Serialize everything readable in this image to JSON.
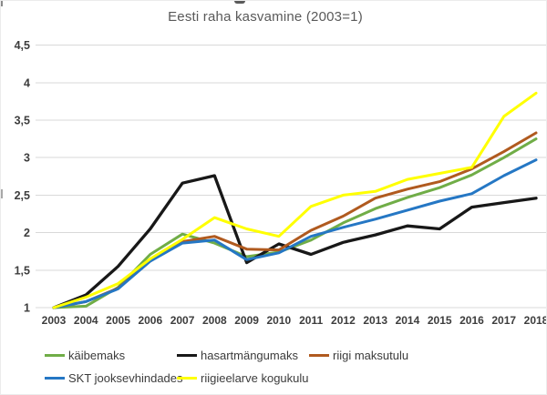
{
  "title": "Eesti raha kasvamine (2003=1)",
  "chart_data": {
    "type": "line",
    "title": "Eesti raha kasvamine (2003=1)",
    "xlabel": "",
    "ylabel": "",
    "x": [
      2003,
      2004,
      2005,
      2006,
      2007,
      2008,
      2009,
      2010,
      2011,
      2012,
      2013,
      2014,
      2015,
      2016,
      2017,
      2018
    ],
    "series": [
      {
        "name": "käibemaks",
        "color": "#70ad47",
        "values": [
          1.0,
          1.02,
          1.27,
          1.71,
          1.98,
          1.86,
          1.68,
          1.74,
          1.9,
          2.13,
          2.32,
          2.47,
          2.6,
          2.77,
          3.0,
          3.25
        ]
      },
      {
        "name": "hasartmängumaks",
        "color": "#181818",
        "values": [
          1.0,
          1.17,
          1.55,
          2.05,
          2.66,
          2.76,
          1.6,
          1.85,
          1.71,
          1.87,
          1.97,
          2.09,
          2.05,
          2.34,
          2.4,
          2.46
        ]
      },
      {
        "name": "riigi maksutulu",
        "color": "#b05a1f",
        "values": [
          1.0,
          1.08,
          1.26,
          1.62,
          1.88,
          1.95,
          1.78,
          1.77,
          2.03,
          2.22,
          2.46,
          2.58,
          2.68,
          2.85,
          3.08,
          3.33
        ]
      },
      {
        "name": "SKT jooksevhindades",
        "color": "#2577c4",
        "values": [
          1.0,
          1.08,
          1.25,
          1.62,
          1.86,
          1.9,
          1.64,
          1.73,
          1.95,
          2.07,
          2.18,
          2.3,
          2.42,
          2.52,
          2.76,
          2.97
        ]
      },
      {
        "name": "riigieelarve kogukulu",
        "color": "#ffff00",
        "values": [
          1.0,
          1.14,
          1.32,
          1.65,
          1.91,
          2.2,
          2.05,
          1.95,
          2.35,
          2.5,
          2.55,
          2.71,
          2.79,
          2.87,
          3.55,
          3.86
        ]
      }
    ],
    "ylim": [
      1,
      4.5
    ],
    "yticks": [
      1,
      1.5,
      2,
      2.5,
      3,
      3.5,
      4,
      4.5
    ],
    "ytick_labels": [
      "1",
      "1,5",
      "2",
      "2,5",
      "3",
      "3,5",
      "4",
      "4,5"
    ],
    "xtick_labels": [
      "2003",
      "2004",
      "2005",
      "2006",
      "2007",
      "2008",
      "2009",
      "2010",
      "2011",
      "2012",
      "2013",
      "2014",
      "2015",
      "2016",
      "2017",
      "2018"
    ],
    "grid": true,
    "legend_position": "bottom",
    "legend_rows": [
      [
        0,
        1,
        2
      ],
      [
        3,
        4
      ]
    ]
  },
  "colors": {
    "gridline": "#d9d9d9",
    "title_text": "#595959",
    "axis_text": "#3d3d3d"
  }
}
